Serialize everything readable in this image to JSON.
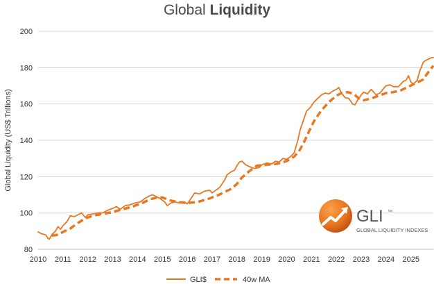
{
  "chart_data": {
    "type": "line",
    "title_regular": "Global ",
    "title_bold": "Liquidity",
    "xlabel": "",
    "ylabel": "Global Liquidity (US$ Trillions)",
    "xlim": [
      2010,
      2025.9
    ],
    "ylim": [
      80,
      200
    ],
    "yticks": [
      80,
      100,
      120,
      140,
      160,
      180,
      200
    ],
    "xticks": [
      2010,
      2011,
      2012,
      2013,
      2014,
      2015,
      2016,
      2017,
      2018,
      2019,
      2020,
      2021,
      2022,
      2023,
      2024,
      2025
    ],
    "grid": "horizontal",
    "legend_position": "bottom-center",
    "color": "#E87722",
    "series": [
      {
        "name": "GLI$",
        "style": "solid",
        "x": [
          2010.0,
          2010.15,
          2010.3,
          2010.4,
          2010.45,
          2010.55,
          2010.7,
          2010.8,
          2010.9,
          2011.0,
          2011.15,
          2011.3,
          2011.45,
          2011.6,
          2011.75,
          2011.9,
          2012.0,
          2012.2,
          2012.4,
          2012.6,
          2012.8,
          2013.0,
          2013.15,
          2013.3,
          2013.5,
          2013.7,
          2013.9,
          2014.1,
          2014.3,
          2014.5,
          2014.6,
          2014.75,
          2014.9,
          2015.0,
          2015.1,
          2015.2,
          2015.35,
          2015.5,
          2015.7,
          2015.9,
          2016.0,
          2016.1,
          2016.2,
          2016.3,
          2016.5,
          2016.7,
          2016.9,
          2017.0,
          2017.1,
          2017.3,
          2017.5,
          2017.6,
          2017.75,
          2017.9,
          2018.0,
          2018.1,
          2018.2,
          2018.35,
          2018.5,
          2018.7,
          2018.9,
          2019.0,
          2019.2,
          2019.4,
          2019.55,
          2019.7,
          2019.85,
          2020.0,
          2020.15,
          2020.3,
          2020.45,
          2020.55,
          2020.65,
          2020.8,
          2020.95,
          2021.1,
          2021.25,
          2021.4,
          2021.55,
          2021.7,
          2021.85,
          2022.0,
          2022.1,
          2022.2,
          2022.35,
          2022.5,
          2022.65,
          2022.75,
          2022.85,
          2023.0,
          2023.1,
          2023.25,
          2023.4,
          2023.5,
          2023.6,
          2023.75,
          2023.9,
          2024.0,
          2024.15,
          2024.3,
          2024.5,
          2024.6,
          2024.7,
          2024.8,
          2024.9,
          2025.0,
          2025.1,
          2025.25,
          2025.35,
          2025.5,
          2025.6,
          2025.75,
          2025.85,
          2025.9
        ],
        "values": [
          89.5,
          88.5,
          88.0,
          86.0,
          85.5,
          88.0,
          90.0,
          92.5,
          91.0,
          93.0,
          95.0,
          98.5,
          98.0,
          99.0,
          100.0,
          97.5,
          99.0,
          99.5,
          100.0,
          100.0,
          101.5,
          102.5,
          103.5,
          102.0,
          104.0,
          104.5,
          105.5,
          106.0,
          108.0,
          109.5,
          110.0,
          109.0,
          108.0,
          107.0,
          106.0,
          104.0,
          105.5,
          106.0,
          105.5,
          106.0,
          105.0,
          107.0,
          109.0,
          111.0,
          110.5,
          112.0,
          112.5,
          111.0,
          112.0,
          114.0,
          118.0,
          121.0,
          122.5,
          123.5,
          126.0,
          128.0,
          128.5,
          126.5,
          125.5,
          124.5,
          125.0,
          126.5,
          127.5,
          127.0,
          128.5,
          128.0,
          130.0,
          129.5,
          131.0,
          133.0,
          140.0,
          146.0,
          150.0,
          156.0,
          158.0,
          161.0,
          163.0,
          165.0,
          166.0,
          165.5,
          167.0,
          168.0,
          169.0,
          166.0,
          163.5,
          163.0,
          160.0,
          159.5,
          162.0,
          165.0,
          166.5,
          165.5,
          168.0,
          166.5,
          165.0,
          166.0,
          168.5,
          170.0,
          170.5,
          169.5,
          169.5,
          171.0,
          172.5,
          173.0,
          175.5,
          172.0,
          171.0,
          173.0,
          178.0,
          183.0,
          184.0,
          185.0,
          185.5,
          185.5
        ]
      },
      {
        "name": "40w MA",
        "style": "dashed",
        "x": [
          2010.55,
          2010.8,
          2011.0,
          2011.3,
          2011.6,
          2011.9,
          2012.2,
          2012.6,
          2013.0,
          2013.4,
          2013.8,
          2014.2,
          2014.5,
          2014.8,
          2015.0,
          2015.3,
          2015.6,
          2016.0,
          2016.4,
          2016.8,
          2017.2,
          2017.5,
          2017.8,
          2018.0,
          2018.2,
          2018.5,
          2018.8,
          2019.2,
          2019.6,
          2020.0,
          2020.3,
          2020.5,
          2020.7,
          2020.9,
          2021.1,
          2021.4,
          2021.7,
          2022.0,
          2022.2,
          2022.45,
          2022.7,
          2022.9,
          2023.1,
          2023.4,
          2023.7,
          2024.0,
          2024.3,
          2024.6,
          2024.9,
          2025.2,
          2025.5,
          2025.7,
          2025.9
        ],
        "values": [
          87.5,
          88.0,
          89.5,
          91.5,
          94.5,
          97.0,
          98.5,
          99.5,
          100.5,
          102.0,
          103.5,
          105.5,
          107.5,
          108.5,
          108.5,
          107.0,
          106.0,
          105.5,
          106.0,
          107.5,
          109.5,
          111.5,
          113.5,
          116.0,
          119.5,
          123.0,
          126.0,
          126.5,
          127.0,
          128.5,
          131.0,
          134.0,
          139.0,
          145.0,
          150.5,
          156.5,
          161.0,
          164.5,
          166.0,
          166.5,
          165.5,
          163.0,
          162.0,
          163.0,
          164.5,
          166.0,
          166.5,
          167.5,
          169.5,
          171.5,
          173.5,
          177.5,
          181.0
        ]
      }
    ]
  },
  "logo": {
    "name": "GLI",
    "trademark": "™",
    "subtitle": "GLOBAL LIQUIDITY INDEXES"
  }
}
